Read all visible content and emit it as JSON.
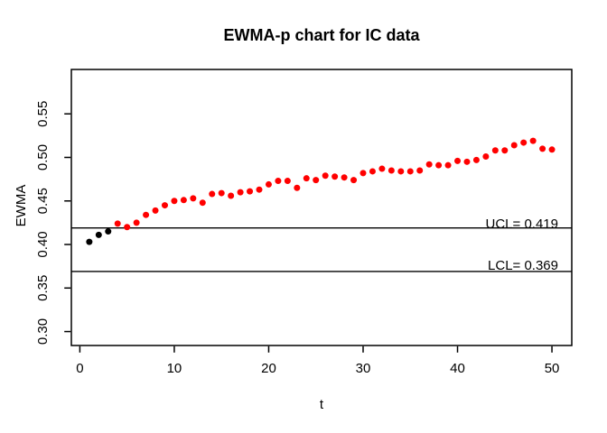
{
  "chart_data": {
    "type": "scatter",
    "title": "EWMA-p chart for IC data",
    "xlabel": "t",
    "ylabel": "EWMA",
    "xlim": [
      -0.9,
      52.1
    ],
    "ylim": [
      0.284,
      0.601
    ],
    "x_ticks": [
      0,
      10,
      20,
      30,
      40,
      50
    ],
    "x_tick_labels": [
      "0",
      "10",
      "20",
      "30",
      "40",
      "50"
    ],
    "y_ticks": [
      0.3,
      0.35,
      0.4,
      0.45,
      0.5,
      0.55
    ],
    "y_tick_labels": [
      "0.30",
      "0.35",
      "0.40",
      "0.45",
      "0.50",
      "0.55"
    ],
    "grid": false,
    "legend": false,
    "x": [
      1,
      2,
      3,
      4,
      5,
      6,
      7,
      8,
      9,
      10,
      11,
      12,
      13,
      14,
      15,
      16,
      17,
      18,
      19,
      20,
      21,
      22,
      23,
      24,
      25,
      26,
      27,
      28,
      29,
      30,
      31,
      32,
      33,
      34,
      35,
      36,
      37,
      38,
      39,
      40,
      41,
      42,
      43,
      44,
      45,
      46,
      47,
      48,
      49,
      50
    ],
    "values": [
      0.403,
      0.411,
      0.415,
      0.424,
      0.42,
      0.425,
      0.434,
      0.439,
      0.445,
      0.45,
      0.451,
      0.453,
      0.448,
      0.458,
      0.459,
      0.456,
      0.46,
      0.461,
      0.463,
      0.469,
      0.473,
      0.473,
      0.465,
      0.476,
      0.474,
      0.479,
      0.478,
      0.477,
      0.474,
      0.482,
      0.484,
      0.487,
      0.485,
      0.484,
      0.484,
      0.485,
      0.492,
      0.491,
      0.491,
      0.496,
      0.495,
      0.497,
      0.501,
      0.508,
      0.508,
      0.514,
      0.517,
      0.519,
      0.51,
      0.509
    ],
    "ucl": {
      "value": 0.419,
      "label": "UCL= 0.419"
    },
    "lcl": {
      "value": 0.369,
      "label": "LCL= 0.369"
    },
    "in_control_points": 3,
    "colors": {
      "in_control": "#000000",
      "signal": "#ff0000",
      "axis": "#000000",
      "limit_line": "#000000",
      "background": "#ffffff"
    }
  }
}
